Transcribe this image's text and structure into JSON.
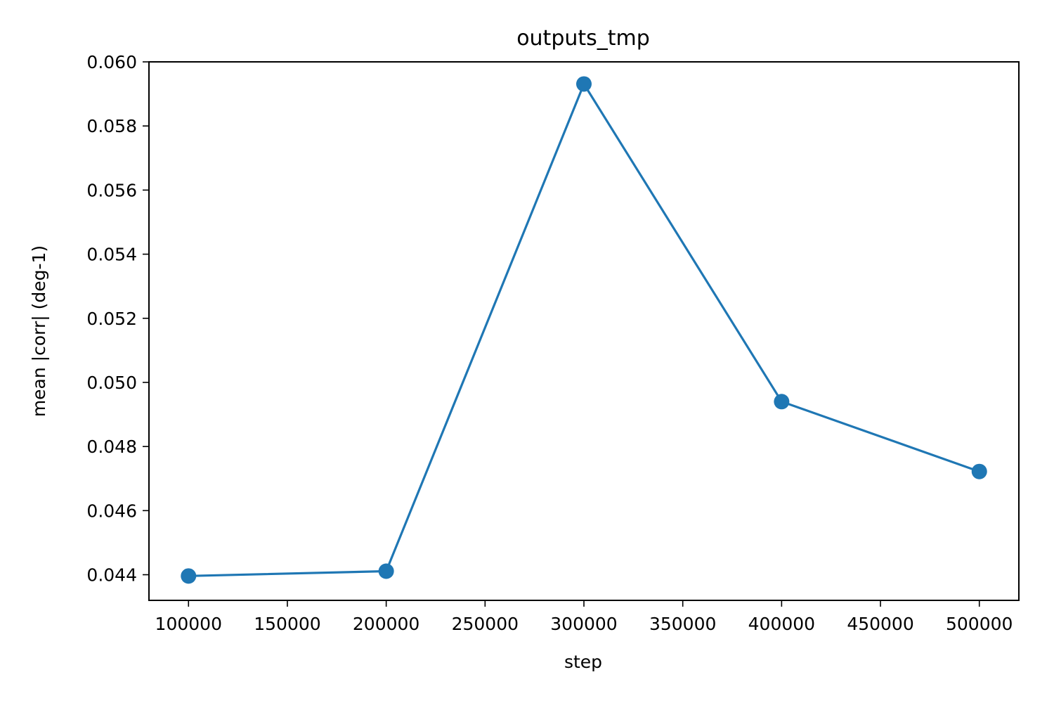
{
  "chart_data": {
    "type": "line",
    "title": "outputs_tmp",
    "xlabel": "step",
    "ylabel": "mean |corr| (deg-1)",
    "x": [
      100000,
      200000,
      300000,
      400000,
      500000
    ],
    "series": [
      {
        "values": [
          0.04396,
          0.04411,
          0.05931,
          0.0494,
          0.04722
        ],
        "color": "#1f77b4",
        "marker": "circle"
      }
    ],
    "xlim": [
      80000,
      520000
    ],
    "ylim": [
      0.0432,
      0.06
    ],
    "xticks": [
      100000,
      150000,
      200000,
      250000,
      300000,
      350000,
      400000,
      450000,
      500000
    ],
    "xtick_labels": [
      "100000",
      "150000",
      "200000",
      "250000",
      "300000",
      "350000",
      "400000",
      "450000",
      "500000"
    ],
    "yticks": [
      0.044,
      0.046,
      0.048,
      0.05,
      0.052,
      0.054,
      0.056,
      0.058,
      0.06
    ],
    "ytick_labels": [
      "0.044",
      "0.046",
      "0.048",
      "0.050",
      "0.052",
      "0.054",
      "0.056",
      "0.058",
      "0.060"
    ],
    "grid": false,
    "legend": "none"
  }
}
